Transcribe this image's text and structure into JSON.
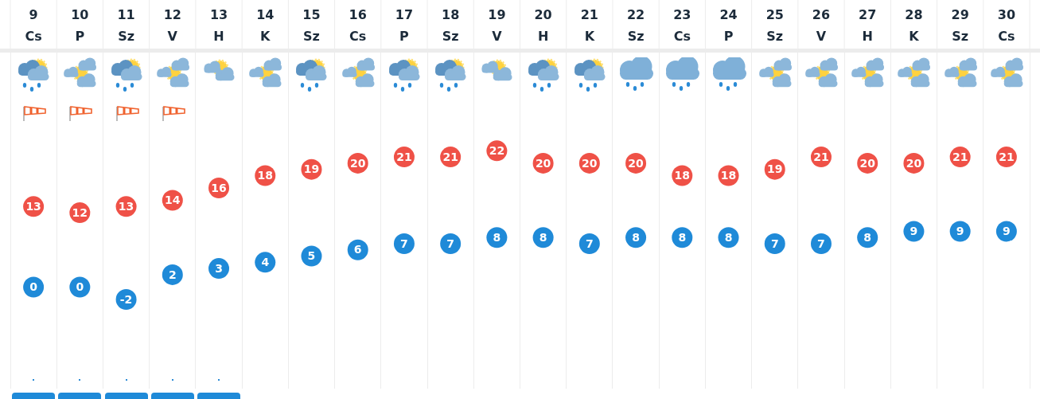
{
  "chart_data": {
    "type": "scatter",
    "categories": [
      "9\nCs",
      "10\nP",
      "11\nSz",
      "12\nV",
      "13\nH",
      "14\nK",
      "15\nSz",
      "16\nCs",
      "17\nP",
      "18\nSz",
      "19\nV",
      "20\nH",
      "21\nK",
      "22\nSz",
      "23\nCs",
      "24\nP",
      "25\nSz",
      "26\nV",
      "27\nH",
      "28\nK",
      "29\nSz",
      "30\nCs"
    ],
    "series": [
      {
        "color": "#ef5147",
        "values": [
          13,
          12,
          13,
          14,
          16,
          18,
          19,
          20,
          21,
          21,
          22,
          20,
          20,
          20,
          18,
          18,
          19,
          21,
          20,
          20,
          21,
          21
        ]
      },
      {
        "color": "#1f8ad8",
        "values": [
          0,
          0,
          -2,
          2,
          3,
          4,
          5,
          6,
          7,
          7,
          8,
          8,
          7,
          8,
          8,
          8,
          7,
          7,
          8,
          9,
          9,
          9
        ]
      }
    ],
    "data_labels": true,
    "marker": "circle",
    "grid": "x",
    "legend": false,
    "tick_labels": "x"
  }
}
